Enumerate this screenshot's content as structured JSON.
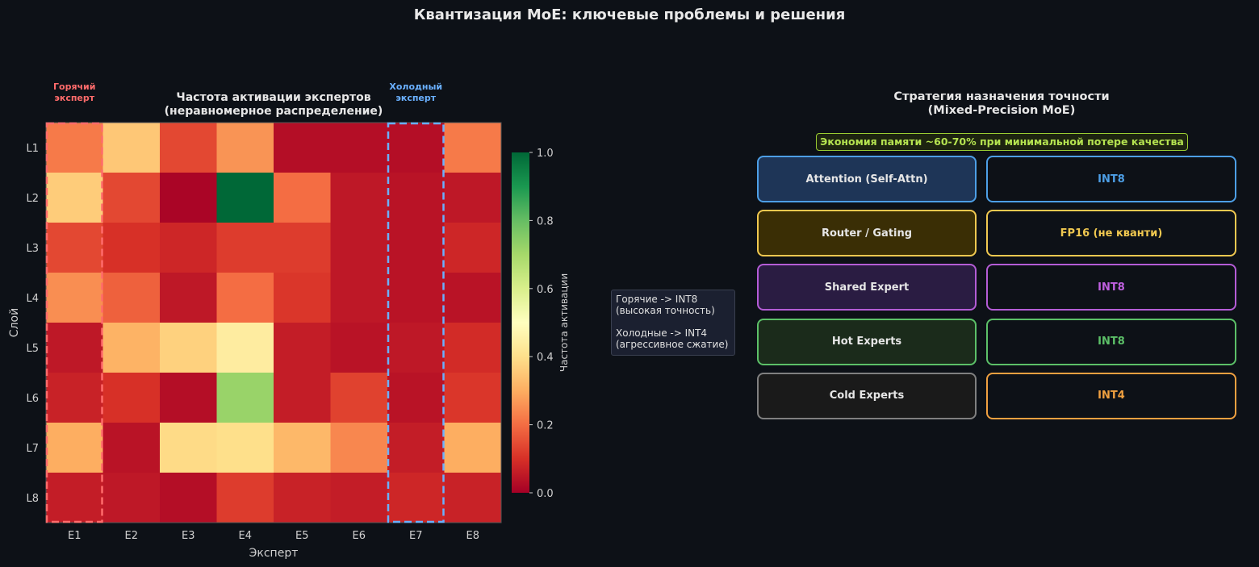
{
  "title": "Квантизация MoE: ключевые проблемы и решения",
  "chart_data": {
    "type": "heatmap",
    "title": "Частота активации экспертов\n(неравномерное распределение)",
    "xlabel": "Эксперт",
    "ylabel": "Слой",
    "x_categories": [
      "E1",
      "E2",
      "E3",
      "E4",
      "E5",
      "E6",
      "E7",
      "E8"
    ],
    "y_categories": [
      "L1",
      "L2",
      "L3",
      "L4",
      "L5",
      "L6",
      "L7",
      "L8"
    ],
    "values": [
      [
        0.22,
        0.35,
        0.14,
        0.26,
        0.03,
        0.03,
        0.03,
        0.22
      ],
      [
        0.36,
        0.14,
        0.01,
        1.0,
        0.2,
        0.05,
        0.04,
        0.05
      ],
      [
        0.14,
        0.1,
        0.08,
        0.12,
        0.12,
        0.05,
        0.04,
        0.08
      ],
      [
        0.25,
        0.18,
        0.05,
        0.2,
        0.11,
        0.05,
        0.04,
        0.04
      ],
      [
        0.05,
        0.31,
        0.37,
        0.44,
        0.06,
        0.04,
        0.05,
        0.09
      ],
      [
        0.07,
        0.1,
        0.03,
        0.72,
        0.06,
        0.13,
        0.04,
        0.11
      ],
      [
        0.3,
        0.04,
        0.39,
        0.4,
        0.32,
        0.24,
        0.06,
        0.3
      ],
      [
        0.06,
        0.05,
        0.03,
        0.12,
        0.07,
        0.06,
        0.08,
        0.07
      ]
    ],
    "colorbar": {
      "label": "Частота активации",
      "range": [
        0.0,
        1.0
      ],
      "ticks": [
        "0.0",
        "0.2",
        "0.4",
        "0.6",
        "0.8",
        "1.0"
      ],
      "colormap": "RdYlGn"
    },
    "highlights": [
      {
        "column": 0,
        "label": "Горячий\nэксперт",
        "color": "#ff6b6b"
      },
      {
        "column": 6,
        "label": "Холодный\nэксперт",
        "color": "#6ab0ff"
      }
    ]
  },
  "legend": {
    "line1": "Горячие -> INT8",
    "line2": "(высокая точность)",
    "line3": "Холодные -> INT4",
    "line4": "(агрессивное сжатие)"
  },
  "strategy": {
    "title_line1": "Стратегия назначения точности",
    "title_line2": "(Mixed-Precision MoE)",
    "savings": "Экономия памяти ~60-70% при минимальной потере качества",
    "rows": [
      {
        "component": "Attention (Self-Attn)",
        "precision": "INT8",
        "border": "#4d9fe6",
        "fill": "#1e3557",
        "precision_color": "#4d9fe6",
        "component_color": "#e6e6e6"
      },
      {
        "component": "Router / Gating",
        "precision": "FP16 (не кванти)",
        "border": "#f0c850",
        "fill": "#3a2e05",
        "precision_color": "#f0c850",
        "component_color": "#e6e6e6"
      },
      {
        "component": "Shared Expert",
        "precision": "INT8",
        "border": "#b45cd6",
        "fill": "#2a1c42",
        "precision_color": "#c060e0",
        "component_color": "#e6e6e6"
      },
      {
        "component": "Hot Experts",
        "precision": "INT8",
        "border": "#5cc068",
        "fill": "#1b2b1b",
        "precision_color": "#5cc068",
        "component_color": "#e6e6e6"
      },
      {
        "component": "Cold Experts",
        "precision": "INT4",
        "border": "#808080",
        "fill": "#1a1a1a",
        "precision_color": "#f0a040",
        "component_color": "#e6e6e6"
      }
    ],
    "precision_border_colors": [
      "#4d9fe6",
      "#f0c850",
      "#b45cd6",
      "#5cc068",
      "#f0a040"
    ]
  }
}
